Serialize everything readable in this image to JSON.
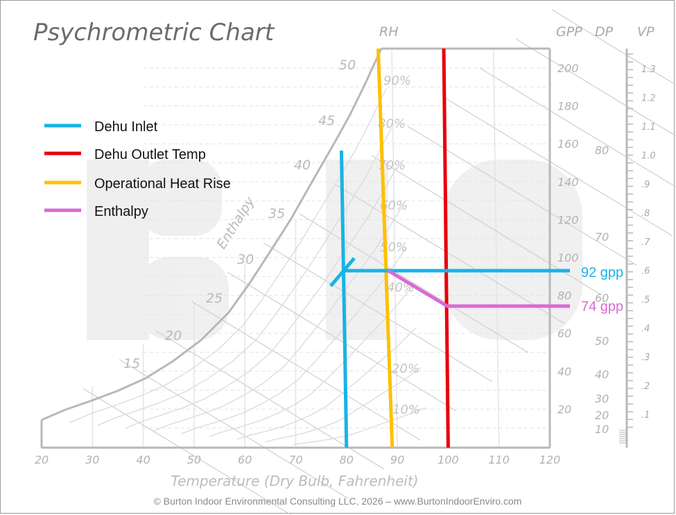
{
  "title": "Psychrometric Chart",
  "footer": "© Burton Indoor Environmental Consulting LLC, 2026 – www.BurtonIndoorEnviro.com",
  "colors": {
    "dehu_inlet": "#18b3e6",
    "dehu_outlet": "#e8000b",
    "heat_rise": "#ffc000",
    "enthalpy": "#d96ad4",
    "chart_lines": "#cfcfcf"
  },
  "chart_data": {
    "type": "line",
    "title": "Psychrometric Chart",
    "xlabel": "Temperature (Dry Bulb, Fahrenheit)",
    "xlim": [
      20,
      120
    ],
    "x_ticks": [
      "20",
      "30",
      "40",
      "50",
      "60",
      "70",
      "80",
      "90",
      "100",
      "110",
      "120"
    ],
    "headers": {
      "rh": "RH",
      "gpp": "GPP",
      "dp": "DP",
      "vp": "VP"
    },
    "enthalpy_label": "Enthalpy",
    "gpp_ticks": [
      "200",
      "180",
      "160",
      "140",
      "120",
      "100",
      "80",
      "60",
      "40",
      "20"
    ],
    "gpp_ticks_low": [
      "50",
      "40",
      "30",
      "20",
      "10"
    ],
    "dp_ticks": [
      "80",
      "70",
      "60"
    ],
    "vp_ticks": [
      "1.3",
      "1.2",
      "1.1",
      "1.0",
      ".9",
      ".8",
      ".7",
      ".6",
      ".5",
      ".4",
      ".3",
      ".2",
      ".1"
    ],
    "wet_bulb_ticks": [
      "50",
      "45",
      "40",
      "35",
      "30",
      "25",
      "20",
      "15"
    ],
    "rh_ticks": [
      "90%",
      "80%",
      "70%",
      "60%",
      "50%",
      "40%",
      "20%",
      "10%"
    ],
    "legend": [
      {
        "name": "Dehu Inlet",
        "color": "#18b3e6"
      },
      {
        "name": "Dehu Outlet Temp",
        "color": "#e8000b"
      },
      {
        "name": "Operational Heat Rise",
        "color": "#ffc000"
      },
      {
        "name": "Enthalpy",
        "color": "#d96ad4"
      }
    ],
    "series": [
      {
        "name": "Dehu Inlet",
        "points": [
          [
            80,
            0
          ],
          [
            79,
            140
          ]
        ]
      },
      {
        "name": "Dehu Outlet Temp",
        "points": [
          [
            100,
            0
          ],
          [
            99,
            210
          ]
        ]
      },
      {
        "name": "Operational Heat Rise",
        "points": [
          [
            89,
            0
          ],
          [
            86,
            210
          ]
        ]
      },
      {
        "name": "Enthalpy",
        "points": [
          [
            88,
            92
          ],
          [
            100,
            74
          ],
          [
            124,
            74
          ]
        ]
      }
    ],
    "annotations": [
      {
        "text": "92 gpp",
        "gpp": 92,
        "color": "#18b3e6"
      },
      {
        "text": "74 gpp",
        "gpp": 74,
        "color": "#d96ad4"
      }
    ]
  }
}
